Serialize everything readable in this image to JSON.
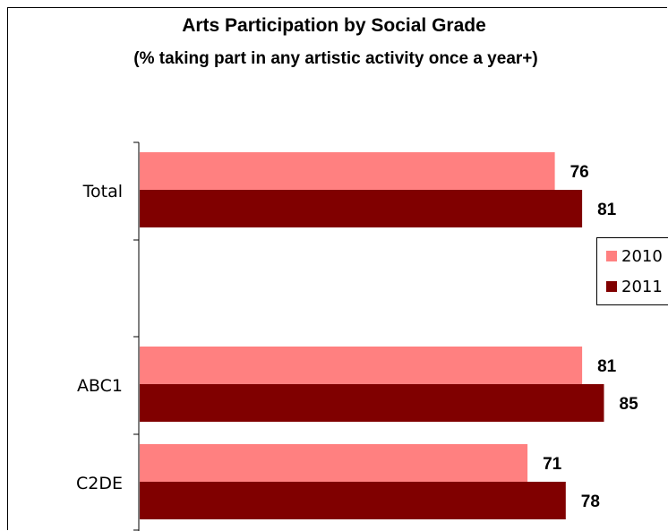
{
  "chart_data": {
    "type": "bar",
    "orientation": "horizontal",
    "title": "Arts Participation by Social Grade",
    "subtitle": "(% taking part in any artistic activity once a year+)",
    "categories": [
      "Total",
      "",
      "ABC1",
      "C2DE"
    ],
    "series": [
      {
        "name": "2010",
        "color": "#ff8080",
        "values": [
          76,
          null,
          81,
          71
        ]
      },
      {
        "name": "2011",
        "color": "#800000",
        "values": [
          81,
          null,
          85,
          78
        ]
      }
    ],
    "xlim": [
      0,
      100
    ],
    "legend": "right",
    "grid": false
  }
}
